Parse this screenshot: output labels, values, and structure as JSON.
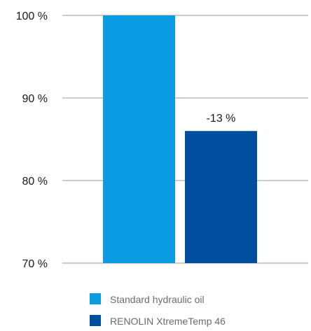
{
  "chart_data": {
    "type": "bar",
    "categories": [
      "Standard hydraulic oil",
      "RENOLIN XtremeTemp 46"
    ],
    "values": [
      100,
      86
    ],
    "colors": [
      "#0a9be3",
      "#004f9f"
    ],
    "ylim": [
      70,
      100
    ],
    "yticks": [
      70,
      80,
      90,
      100
    ],
    "ytick_labels": [
      "70 %",
      "80 %",
      "90 %",
      "100 %"
    ],
    "grid": true,
    "data_labels": [
      "",
      "-13 %"
    ],
    "legend": {
      "placement": "bottom",
      "entries": [
        "Standard hydraulic oil",
        "RENOLIN XtremeTemp 46"
      ]
    },
    "title": "",
    "xlabel": "",
    "ylabel": ""
  }
}
